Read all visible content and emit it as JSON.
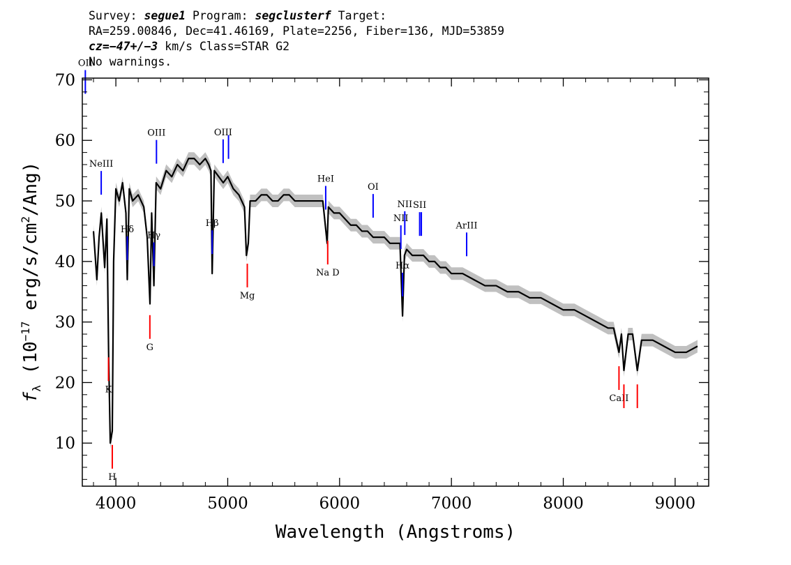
{
  "header": {
    "line1": {
      "survey_label": "Survey: ",
      "survey": "segue1",
      "program_label": " Program: ",
      "program": "segclusterf",
      "target_label": " Target:"
    },
    "line2": "RA=259.00846, Dec=41.46169, Plate=2256, Fiber=136, MJD=53859",
    "line3": {
      "cz_label": "cz=",
      "cz_value": "−47+/−3",
      "cz_rest": " km/s Class=STAR G2"
    },
    "line4": "No warnings."
  },
  "colors": {
    "spectrum": "#000000",
    "error_band": "#c0c0c0",
    "emission_marker": "#0000ff",
    "absorption_marker": "#ff0000"
  },
  "chart_data": {
    "type": "line",
    "xlabel": "Wavelength (Angstroms)",
    "ylabel": "f_λ (10^-17 erg/s/cm^2/Ang)",
    "xlim": [
      3700,
      9300
    ],
    "ylim": [
      3,
      70
    ],
    "xticks": [
      4000,
      5000,
      6000,
      7000,
      8000,
      9000
    ],
    "yticks": [
      10,
      20,
      30,
      40,
      50,
      60,
      70
    ],
    "grid": false,
    "series": [
      {
        "x": [
          3800,
          3830,
          3850,
          3870,
          3900,
          3920,
          3935,
          3950,
          3968,
          3980,
          4000,
          4030,
          4060,
          4090,
          4102,
          4120,
          4150,
          4200,
          4250,
          4280,
          4305,
          4320,
          4340,
          4360,
          4400,
          4450,
          4500,
          4550,
          4600,
          4650,
          4700,
          4750,
          4800,
          4830,
          4850,
          4861,
          4880,
          4920,
          4960,
          5000,
          5050,
          5100,
          5150,
          5167,
          5184,
          5200,
          5250,
          5300,
          5350,
          5400,
          5450,
          5500,
          5550,
          5600,
          5650,
          5700,
          5750,
          5800,
          5850,
          5889,
          5900,
          5950,
          6000,
          6050,
          6100,
          6150,
          6200,
          6250,
          6300,
          6350,
          6400,
          6450,
          6500,
          6540,
          6563,
          6580,
          6600,
          6650,
          6700,
          6750,
          6800,
          6850,
          6900,
          6950,
          7000,
          7100,
          7200,
          7300,
          7400,
          7500,
          7600,
          7700,
          7800,
          7900,
          8000,
          8100,
          8200,
          8300,
          8400,
          8450,
          8498,
          8520,
          8542,
          8580,
          8620,
          8662,
          8700,
          8800,
          8900,
          9000,
          9100,
          9200
        ],
        "y": [
          45,
          37,
          44,
          48,
          39,
          47,
          25,
          10,
          12,
          40,
          52,
          50,
          53,
          48,
          37,
          52,
          50,
          51,
          49,
          44,
          33,
          48,
          36,
          53,
          52,
          55,
          54,
          56,
          55,
          57,
          57,
          56,
          57,
          56,
          55,
          38,
          55,
          54,
          53,
          54,
          52,
          51,
          49,
          41,
          43,
          50,
          50,
          51,
          51,
          50,
          50,
          51,
          51,
          50,
          50,
          50,
          50,
          50,
          50,
          43,
          49,
          48,
          48,
          47,
          46,
          46,
          45,
          45,
          44,
          44,
          44,
          43,
          43,
          43,
          31,
          41,
          42,
          41,
          41,
          41,
          40,
          40,
          39,
          39,
          38,
          38,
          37,
          36,
          36,
          35,
          35,
          34,
          34,
          33,
          32,
          32,
          31,
          30,
          29,
          29,
          25,
          28,
          22,
          28,
          28,
          22,
          27,
          27,
          26,
          25,
          25,
          26
        ]
      }
    ],
    "line_markers": [
      {
        "name": "OII",
        "wavelength": 3727,
        "type": "emission",
        "label": "OII"
      },
      {
        "name": "NeIII",
        "wavelength": 3869,
        "type": "emission",
        "label": "NeIII"
      },
      {
        "name": "Hδ",
        "wavelength": 4102,
        "type": "emission",
        "label": "Hδ"
      },
      {
        "name": "Hγ",
        "wavelength": 4340,
        "type": "emission",
        "label": "Hγ"
      },
      {
        "name": "OIII 4363",
        "wavelength": 4363,
        "type": "emission",
        "label": "OIII"
      },
      {
        "name": "Hβ",
        "wavelength": 4861,
        "type": "emission",
        "label": "Hβ"
      },
      {
        "name": "OIII 4959",
        "wavelength": 4959,
        "type": "emission",
        "label": "OIII"
      },
      {
        "name": "OIII 5007",
        "wavelength": 5007,
        "type": "emission",
        "label": ""
      },
      {
        "name": "HeI",
        "wavelength": 5876,
        "type": "emission",
        "label": "HeI"
      },
      {
        "name": "OI",
        "wavelength": 6300,
        "type": "emission",
        "label": "OI"
      },
      {
        "name": "NII 6548",
        "wavelength": 6548,
        "type": "emission",
        "label": "NII"
      },
      {
        "name": "Hα",
        "wavelength": 6563,
        "type": "emission",
        "label": "Hα"
      },
      {
        "name": "NII 6583",
        "wavelength": 6583,
        "type": "emission",
        "label": "NII"
      },
      {
        "name": "SII 6716",
        "wavelength": 6716,
        "type": "emission",
        "label": "SII"
      },
      {
        "name": "SII 6731",
        "wavelength": 6731,
        "type": "emission",
        "label": ""
      },
      {
        "name": "ArIII",
        "wavelength": 7136,
        "type": "emission",
        "label": "ArIII"
      },
      {
        "name": "K",
        "wavelength": 3934,
        "type": "absorption",
        "label": "K"
      },
      {
        "name": "H",
        "wavelength": 3968,
        "type": "absorption",
        "label": "H"
      },
      {
        "name": "G",
        "wavelength": 4304,
        "type": "absorption",
        "label": "G"
      },
      {
        "name": "Mg",
        "wavelength": 5175,
        "type": "absorption",
        "label": "Mg"
      },
      {
        "name": "Na D",
        "wavelength": 5894,
        "type": "absorption",
        "label": "Na D"
      },
      {
        "name": "CaII 8498",
        "wavelength": 8498,
        "type": "absorption",
        "label": "CaII"
      },
      {
        "name": "CaII 8542",
        "wavelength": 8542,
        "type": "absorption",
        "label": ""
      },
      {
        "name": "CaII 8662",
        "wavelength": 8662,
        "type": "absorption",
        "label": ""
      }
    ]
  }
}
